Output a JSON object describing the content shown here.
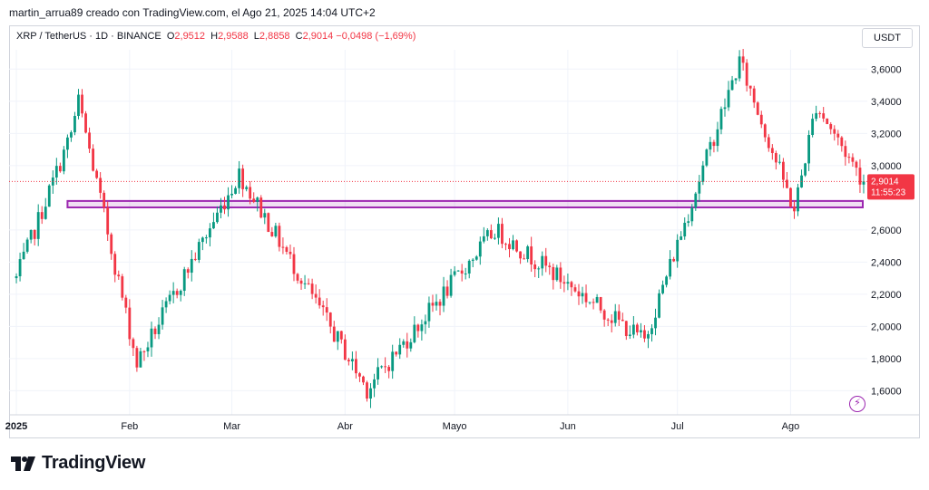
{
  "header": {
    "text": "martin_arrua89 creado con TradingView.com, el Ago 21, 2025 14:04 UTC+2"
  },
  "legend": {
    "symbol": "XRP / TetherUS · 1D · BINANCE",
    "open_label": "O",
    "open": "2,9512",
    "high_label": "H",
    "high": "2,9588",
    "low_label": "L",
    "low": "2,8858",
    "close_label": "C",
    "close": "2,9014",
    "change": "−0,0498 (−1,69%)"
  },
  "currency_button": "USDT",
  "price_badge": {
    "price": "2,9014",
    "countdown": "11:55:23"
  },
  "brand": {
    "name": "TradingView"
  },
  "colors": {
    "up": "#089981",
    "down": "#f23645",
    "zone": "#9c27b0",
    "grid": "#f0f3fa"
  },
  "chart_data": {
    "type": "candlestick",
    "x_axis": {
      "tick_labels": [
        "2025",
        "Feb",
        "Mar",
        "Abr",
        "Mayo",
        "Jun",
        "Jul",
        "Ago"
      ]
    },
    "y_axis": {
      "tick_labels": [
        "1,6000",
        "1,8000",
        "2,0000",
        "2,2000",
        "2,4000",
        "2,6000",
        "3,0000",
        "3,2000",
        "3,4000",
        "3,6000"
      ],
      "range": [
        1.45,
        3.72
      ],
      "scale": "linear",
      "position": "right"
    },
    "last_price": 2.9014,
    "support_zone": {
      "low": 2.74,
      "high": 2.78,
      "start": "2025-01-15"
    },
    "grid": true,
    "approx_key_points": [
      {
        "date": "2025-01-01",
        "close": 2.3
      },
      {
        "date": "2025-01-16",
        "close": 3.2
      },
      {
        "date": "2025-01-18",
        "high": 3.4
      },
      {
        "date": "2025-02-03",
        "low": 1.77
      },
      {
        "date": "2025-03-03",
        "close": 2.95
      },
      {
        "date": "2025-04-07",
        "low": 1.61
      },
      {
        "date": "2025-05-12",
        "close": 2.6
      },
      {
        "date": "2025-06-22",
        "low": 1.91
      },
      {
        "date": "2025-07-18",
        "high": 3.65
      },
      {
        "date": "2025-08-02",
        "low": 2.72
      },
      {
        "date": "2025-08-08",
        "high": 3.38
      },
      {
        "date": "2025-08-21",
        "close": 2.9
      }
    ]
  }
}
